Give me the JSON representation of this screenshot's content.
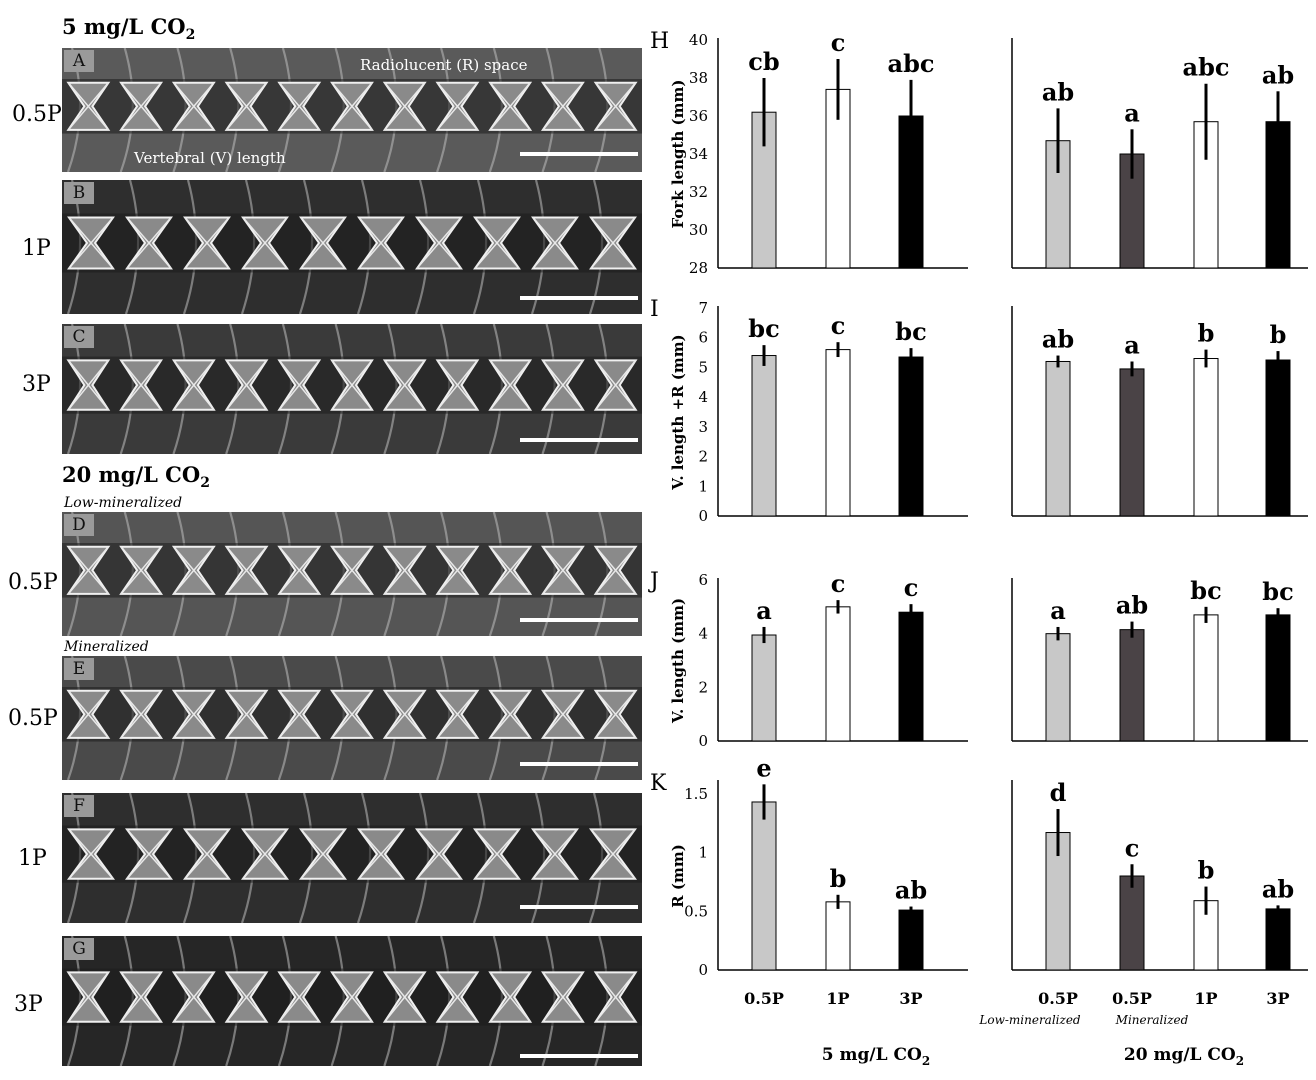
{
  "left_panel": {
    "group1_title": "5 mg/L CO",
    "group1_sub": "2",
    "group2_title": "20 mg/L CO",
    "group2_sub": "2",
    "sublabel_low": "Low-mineralized",
    "sublabel_min": "Mineralized",
    "annotation_r": "Radiolucent (R) space",
    "annotation_v": "Vertebral (V) length",
    "rows": [
      {
        "letter": "A",
        "label": "0.5P"
      },
      {
        "letter": "B",
        "label": "1P"
      },
      {
        "letter": "C",
        "label": "3P"
      },
      {
        "letter": "D",
        "label": "0.5P"
      },
      {
        "letter": "E",
        "label": "0.5P"
      },
      {
        "letter": "F",
        "label": "1P"
      },
      {
        "letter": "G",
        "label": "3P"
      }
    ]
  },
  "colors": {
    "light_gray": "#c8c8c8",
    "dark_gray": "#4a4346",
    "white": "#ffffff",
    "black": "#000000"
  },
  "chart_data": [
    {
      "type": "bar",
      "panel": "H",
      "ylabel": "Fork length (mm)",
      "ylim": [
        28,
        40
      ],
      "yticks": [
        28,
        30,
        32,
        34,
        36,
        38,
        40
      ],
      "groups": [
        {
          "bars": [
            {
              "value": 36.2,
              "err": 1.8,
              "sig": "cb",
              "color": "light_gray"
            },
            {
              "value": 37.4,
              "err": 1.6,
              "sig": "c",
              "color": "white"
            },
            {
              "value": 36.0,
              "err": 1.9,
              "sig": "abc",
              "color": "black"
            }
          ]
        },
        {
          "bars": [
            {
              "value": 34.7,
              "err": 1.7,
              "sig": "ab",
              "color": "light_gray"
            },
            {
              "value": 34.0,
              "err": 1.3,
              "sig": "a",
              "color": "dark_gray"
            },
            {
              "value": 35.7,
              "err": 2.0,
              "sig": "abc",
              "color": "white"
            },
            {
              "value": 35.7,
              "err": 1.6,
              "sig": "ab",
              "color": "black"
            }
          ]
        }
      ]
    },
    {
      "type": "bar",
      "panel": "I",
      "ylabel": "V. length +R (mm)",
      "ylim": [
        0,
        7
      ],
      "yticks": [
        0,
        1,
        2,
        3,
        4,
        5,
        6,
        7
      ],
      "groups": [
        {
          "bars": [
            {
              "value": 5.4,
              "err": 0.35,
              "sig": "bc",
              "color": "light_gray"
            },
            {
              "value": 5.6,
              "err": 0.25,
              "sig": "c",
              "color": "white"
            },
            {
              "value": 5.35,
              "err": 0.3,
              "sig": "bc",
              "color": "black"
            }
          ]
        },
        {
          "bars": [
            {
              "value": 5.2,
              "err": 0.2,
              "sig": "ab",
              "color": "light_gray"
            },
            {
              "value": 4.95,
              "err": 0.25,
              "sig": "a",
              "color": "dark_gray"
            },
            {
              "value": 5.3,
              "err": 0.3,
              "sig": "b",
              "color": "white"
            },
            {
              "value": 5.25,
              "err": 0.3,
              "sig": "b",
              "color": "black"
            }
          ]
        }
      ]
    },
    {
      "type": "bar",
      "panel": "J",
      "ylabel": "V. length (mm)",
      "ylim": [
        0,
        6
      ],
      "yticks": [
        0,
        2,
        4,
        6
      ],
      "groups": [
        {
          "bars": [
            {
              "value": 3.95,
              "err": 0.3,
              "sig": "a",
              "color": "light_gray"
            },
            {
              "value": 5.0,
              "err": 0.25,
              "sig": "c",
              "color": "white"
            },
            {
              "value": 4.8,
              "err": 0.3,
              "sig": "c",
              "color": "black"
            }
          ]
        },
        {
          "bars": [
            {
              "value": 4.0,
              "err": 0.25,
              "sig": "a",
              "color": "light_gray"
            },
            {
              "value": 4.15,
              "err": 0.3,
              "sig": "ab",
              "color": "dark_gray"
            },
            {
              "value": 4.7,
              "err": 0.3,
              "sig": "bc",
              "color": "white"
            },
            {
              "value": 4.7,
              "err": 0.25,
              "sig": "bc",
              "color": "black"
            }
          ]
        }
      ]
    },
    {
      "type": "bar",
      "panel": "K",
      "ylabel": "R (mm)",
      "ylim": [
        0,
        1.6
      ],
      "yticks": [
        0,
        0.5,
        1,
        1.5
      ],
      "ytick_labels": [
        "0",
        "0.5",
        "1",
        "1.5"
      ],
      "groups": [
        {
          "bars": [
            {
              "value": 1.43,
              "err": 0.15,
              "sig": "e",
              "color": "light_gray"
            },
            {
              "value": 0.58,
              "err": 0.06,
              "sig": "b",
              "color": "white"
            },
            {
              "value": 0.51,
              "err": 0.03,
              "sig": "ab",
              "color": "black"
            }
          ]
        },
        {
          "bars": [
            {
              "value": 1.17,
              "err": 0.2,
              "sig": "d",
              "color": "light_gray"
            },
            {
              "value": 0.8,
              "err": 0.1,
              "sig": "c",
              "color": "dark_gray"
            },
            {
              "value": 0.59,
              "err": 0.12,
              "sig": "b",
              "color": "white"
            },
            {
              "value": 0.52,
              "err": 0.03,
              "sig": "ab",
              "color": "black"
            }
          ]
        }
      ]
    }
  ],
  "x_axis": {
    "group1_ticks": [
      "0.5P",
      "1P",
      "3P"
    ],
    "group2_ticks": [
      "0.5P",
      "0.5P",
      "1P",
      "3P"
    ],
    "group2_sublabels": [
      "Low-mineralized",
      "Mineralized"
    ],
    "group1_label": "5 mg/L CO",
    "group1_label_sub": "2",
    "group2_label": "20 mg/L CO",
    "group2_label_sub": "2"
  }
}
